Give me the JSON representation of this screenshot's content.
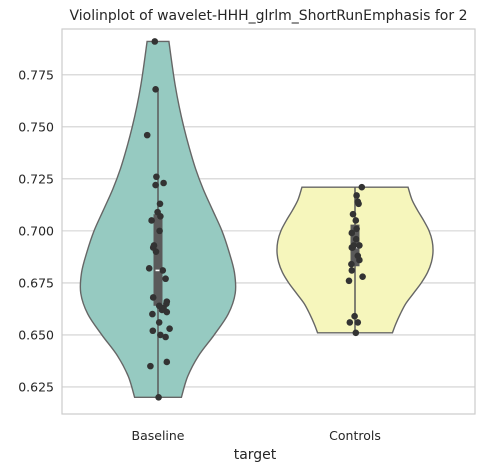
{
  "chart_data": {
    "type": "violin",
    "title": "Violinplot of wavelet-HHH_glrlm_ShortRunEmphasis for 2",
    "xlabel": "target",
    "ylabel": "",
    "ylim": [
      0.612,
      0.797
    ],
    "yticks": [
      0.625,
      0.65,
      0.675,
      0.7,
      0.725,
      0.75,
      0.775
    ],
    "ytick_labels": [
      "0.625",
      "0.650",
      "0.675",
      "0.700",
      "0.725",
      "0.750",
      "0.775"
    ],
    "grid": true,
    "categories": [
      "Baseline",
      "Controls"
    ],
    "colors": {
      "Baseline": "#96cac1",
      "Controls": "#f6f6bc",
      "outline": "#666666",
      "points": "#333333",
      "grid": "#d0d0d0"
    },
    "series": [
      {
        "name": "Baseline",
        "min": 0.62,
        "max": 0.791,
        "q1": 0.664,
        "median": 0.681,
        "q3": 0.708,
        "whisker_low": 0.62,
        "whisker_high": 0.768,
        "density": [
          [
            0.62,
            0.3
          ],
          [
            0.63,
            0.38
          ],
          [
            0.64,
            0.52
          ],
          [
            0.65,
            0.72
          ],
          [
            0.66,
            0.9
          ],
          [
            0.67,
            0.99
          ],
          [
            0.68,
            0.98
          ],
          [
            0.69,
            0.91
          ],
          [
            0.7,
            0.82
          ],
          [
            0.71,
            0.7
          ],
          [
            0.72,
            0.58
          ],
          [
            0.73,
            0.48
          ],
          [
            0.74,
            0.4
          ],
          [
            0.75,
            0.33
          ],
          [
            0.76,
            0.27
          ],
          [
            0.77,
            0.22
          ],
          [
            0.78,
            0.18
          ],
          [
            0.791,
            0.14
          ]
        ],
        "points": [
          [
            0.62,
            0.015
          ],
          [
            0.635,
            -0.19
          ],
          [
            0.637,
            0.22
          ],
          [
            0.649,
            0.19
          ],
          [
            0.65,
            0.06
          ],
          [
            0.652,
            -0.13
          ],
          [
            0.653,
            0.29
          ],
          [
            0.656,
            0.03
          ],
          [
            0.66,
            -0.14
          ],
          [
            0.661,
            0.22
          ],
          [
            0.662,
            0.1
          ],
          [
            0.663,
            0.14
          ],
          [
            0.664,
            0.03
          ],
          [
            0.665,
            0.21
          ],
          [
            0.666,
            0.22
          ],
          [
            0.668,
            -0.12
          ],
          [
            0.677,
            0.19
          ],
          [
            0.681,
            0.12
          ],
          [
            0.682,
            -0.22
          ],
          [
            0.69,
            -0.05
          ],
          [
            0.692,
            -0.12
          ],
          [
            0.693,
            -0.1
          ],
          [
            0.7,
            0.04
          ],
          [
            0.705,
            -0.16
          ],
          [
            0.707,
            0.06
          ],
          [
            0.709,
            -0.01
          ],
          [
            0.713,
            0.05
          ],
          [
            0.722,
            -0.06
          ],
          [
            0.723,
            0.14
          ],
          [
            0.726,
            -0.04
          ],
          [
            0.746,
            -0.27
          ],
          [
            0.768,
            -0.06
          ],
          [
            0.791,
            -0.08
          ]
        ]
      },
      {
        "name": "Controls",
        "min": 0.651,
        "max": 0.721,
        "q1": 0.683,
        "median": 0.692,
        "q3": 0.703,
        "whisker_low": 0.651,
        "whisker_high": 0.721,
        "density": [
          [
            0.651,
            0.48
          ],
          [
            0.655,
            0.52
          ],
          [
            0.66,
            0.58
          ],
          [
            0.665,
            0.65
          ],
          [
            0.67,
            0.75
          ],
          [
            0.675,
            0.85
          ],
          [
            0.68,
            0.93
          ],
          [
            0.685,
            0.98
          ],
          [
            0.69,
            1.0
          ],
          [
            0.695,
            0.99
          ],
          [
            0.7,
            0.95
          ],
          [
            0.705,
            0.88
          ],
          [
            0.71,
            0.8
          ],
          [
            0.715,
            0.73
          ],
          [
            0.721,
            0.68
          ]
        ],
        "points": [
          [
            0.651,
            0.02
          ],
          [
            0.656,
            -0.13
          ],
          [
            0.656,
            0.07
          ],
          [
            0.659,
            -0.01
          ],
          [
            0.676,
            -0.15
          ],
          [
            0.678,
            0.19
          ],
          [
            0.681,
            -0.08
          ],
          [
            0.684,
            -0.09
          ],
          [
            0.686,
            0.11
          ],
          [
            0.688,
            0.07
          ],
          [
            0.692,
            -0.08
          ],
          [
            0.692,
            -0.06
          ],
          [
            0.693,
            -0.03
          ],
          [
            0.693,
            0.11
          ],
          [
            0.696,
            0.03
          ],
          [
            0.699,
            -0.08
          ],
          [
            0.701,
            0.04
          ],
          [
            0.705,
            0.02
          ],
          [
            0.708,
            -0.05
          ],
          [
            0.713,
            0.09
          ],
          [
            0.714,
            0.07
          ],
          [
            0.717,
            0.04
          ],
          [
            0.721,
            0.17
          ]
        ]
      }
    ]
  }
}
